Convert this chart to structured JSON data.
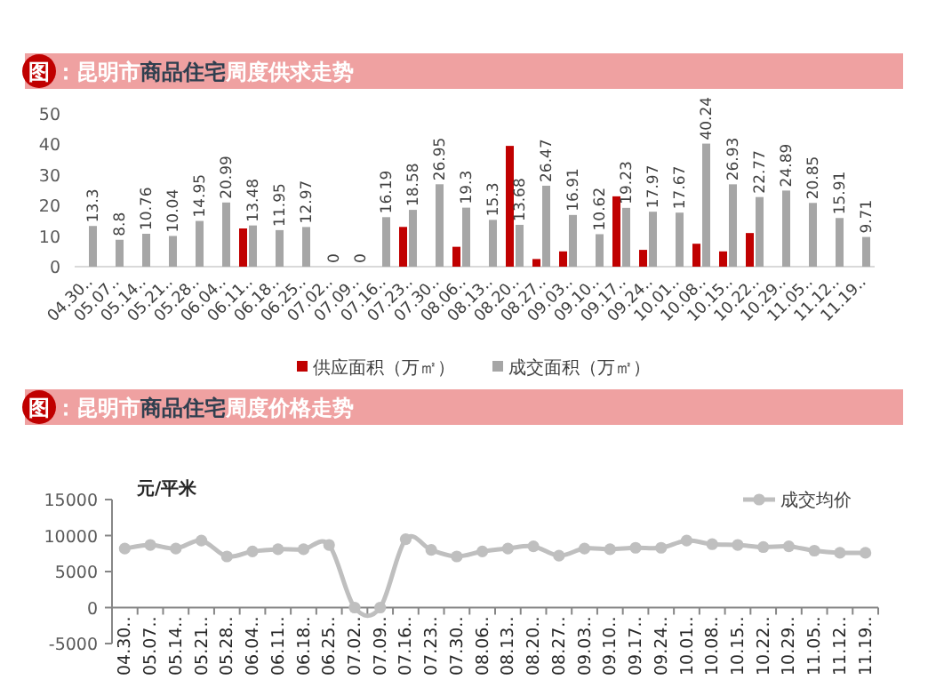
{
  "chart_data": [
    {
      "type": "bar",
      "title": "图：昆明市商品住宅周度供求走势",
      "categories": [
        "04.30..",
        "05.07..",
        "05.14..",
        "05.21..",
        "05.28..",
        "06.04..",
        "06.11..",
        "06.18..",
        "06.25..",
        "07.02..",
        "07.09..",
        "07.16..",
        "07.23..",
        "07.30..",
        "08.06..",
        "08.13..",
        "08.20..",
        "08.27..",
        "09.03..",
        "09.10..",
        "09.17..",
        "09.24..",
        "10.01..",
        "10.08..",
        "10.15..",
        "10.22..",
        "10.29..",
        "11.05..",
        "11.12..",
        "11.19.."
      ],
      "series": [
        {
          "name": "供应面积（万㎡）",
          "color": "#c00000",
          "values": [
            null,
            null,
            null,
            null,
            null,
            null,
            12.5,
            null,
            null,
            null,
            null,
            null,
            13,
            null,
            6.5,
            null,
            39.5,
            2.5,
            5,
            null,
            23,
            5.5,
            null,
            7.5,
            5,
            11,
            null,
            null,
            null,
            null
          ]
        },
        {
          "name": "成交面积（万㎡）",
          "color": "#a6a6a6",
          "values": [
            13.3,
            8.8,
            10.76,
            10.04,
            14.95,
            20.99,
            13.48,
            11.95,
            12.97,
            0,
            0,
            16.19,
            18.58,
            26.95,
            19.3,
            15.3,
            13.68,
            26.47,
            16.91,
            10.62,
            19.23,
            17.97,
            17.67,
            40.24,
            26.93,
            22.77,
            24.89,
            20.85,
            15.91,
            9.71
          ],
          "value_labels": [
            "13.3",
            "8.8",
            "10.76",
            "10.04",
            "14.95",
            "20.99",
            "13.48",
            "11.95",
            "12.97",
            "0",
            "0",
            "16.19",
            "18.58",
            "26.95",
            "19.3",
            "15.3",
            "13.68",
            "26.47",
            "16.91",
            "10.62",
            "19.23",
            "17.97",
            "17.67",
            "40.24",
            "26.93",
            "22.77",
            "24.89",
            "20.85",
            "15.91",
            "9.71"
          ]
        }
      ],
      "ylim": [
        0,
        50
      ],
      "yticks": [
        0,
        10,
        20,
        30,
        40,
        50
      ],
      "legend": "bottom"
    },
    {
      "type": "line",
      "title": "图：昆明市商品住宅周度价格走势",
      "ylabel": "元/平米",
      "categories": [
        "04.30..",
        "05.07..",
        "05.14..",
        "05.21..",
        "05.28..",
        "06.04..",
        "06.11..",
        "06.18..",
        "06.25..",
        "07.02..",
        "07.09..",
        "07.16..",
        "07.23..",
        "07.30..",
        "08.06..",
        "08.13..",
        "08.20..",
        "08.27..",
        "09.03..",
        "09.10..",
        "09.17..",
        "09.24..",
        "10.01..",
        "10.08..",
        "10.15..",
        "10.22..",
        "10.29..",
        "11.05..",
        "11.12..",
        "11.19.."
      ],
      "series": [
        {
          "name": "成交均价",
          "color": "#bfbfbf",
          "values": [
            8200,
            8700,
            8200,
            9300,
            7100,
            7800,
            8100,
            8100,
            8700,
            0,
            0,
            9500,
            8000,
            7100,
            7800,
            8200,
            8500,
            7200,
            8200,
            8100,
            8300,
            8300,
            9300,
            8800,
            8700,
            8400,
            8500,
            7900,
            7600,
            7600
          ]
        }
      ],
      "ylim": [
        -5000,
        15000
      ],
      "yticks": [
        -5000,
        0,
        5000,
        10000,
        15000
      ],
      "legend": "top right",
      "marker": "circle"
    }
  ]
}
